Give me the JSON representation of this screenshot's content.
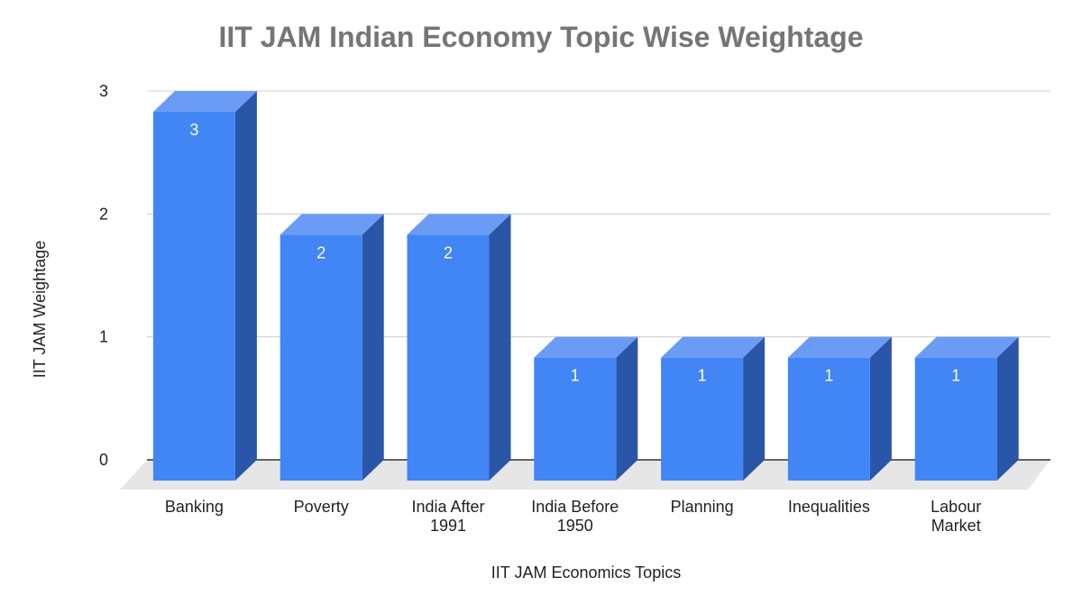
{
  "chart_data": {
    "type": "bar3d",
    "title": "IIT JAM Indian Economy Topic Wise Weightage",
    "x_label": "IIT JAM Economics Topics",
    "y_label": "IIT JAM Weightage",
    "categories": [
      "Banking",
      "Poverty",
      "India After 1991",
      "India Before 1950",
      "Planning",
      "Inequalities",
      "Labour Market"
    ],
    "values": [
      3,
      2,
      2,
      1,
      1,
      1,
      1
    ],
    "color": "#4285f4",
    "ylim": [
      0,
      3
    ],
    "yticks": [
      0,
      1,
      2,
      3
    ],
    "grid": true
  }
}
